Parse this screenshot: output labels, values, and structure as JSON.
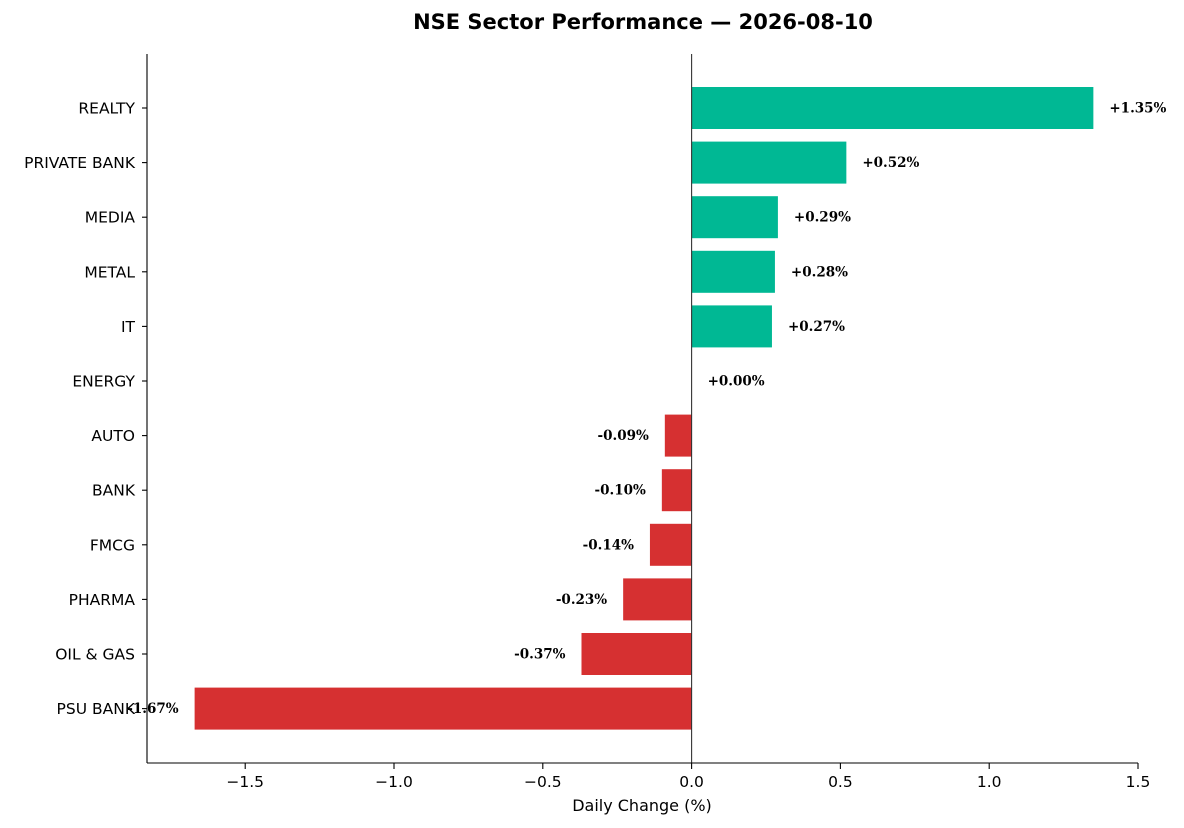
{
  "chart_data": {
    "type": "bar",
    "orientation": "horizontal",
    "title": "NSE Sector Performance — 2026-08-10",
    "xlabel": "Daily Change (%)",
    "ylabel": "",
    "xlim": [
      -1.83,
      1.5
    ],
    "xticks": [
      -1.5,
      -1.0,
      -0.5,
      0.0,
      0.5,
      1.0,
      1.5
    ],
    "xtick_labels": [
      "−1.5",
      "−1.0",
      "−0.5",
      "0.0",
      "0.5",
      "1.0",
      "1.5"
    ],
    "categories": [
      "REALTY",
      "PRIVATE BANK",
      "MEDIA",
      "METAL",
      "IT",
      "ENERGY",
      "AUTO",
      "BANK",
      "FMCG",
      "PHARMA",
      "OIL & GAS",
      "PSU BANK"
    ],
    "values": [
      1.35,
      0.52,
      0.29,
      0.28,
      0.27,
      0.0,
      -0.09,
      -0.1,
      -0.14,
      -0.23,
      -0.37,
      -1.67
    ],
    "data_labels": [
      "+1.35%",
      "+0.52%",
      "+0.29%",
      "+0.28%",
      "+0.27%",
      "+0.00%",
      "-0.09%",
      "-0.10%",
      "-0.14%",
      "-0.23%",
      "-0.37%",
      "-1.67%"
    ],
    "colors": {
      "positive": "#00b894",
      "negative": "#d63031"
    },
    "grid": false,
    "legend": "none"
  }
}
